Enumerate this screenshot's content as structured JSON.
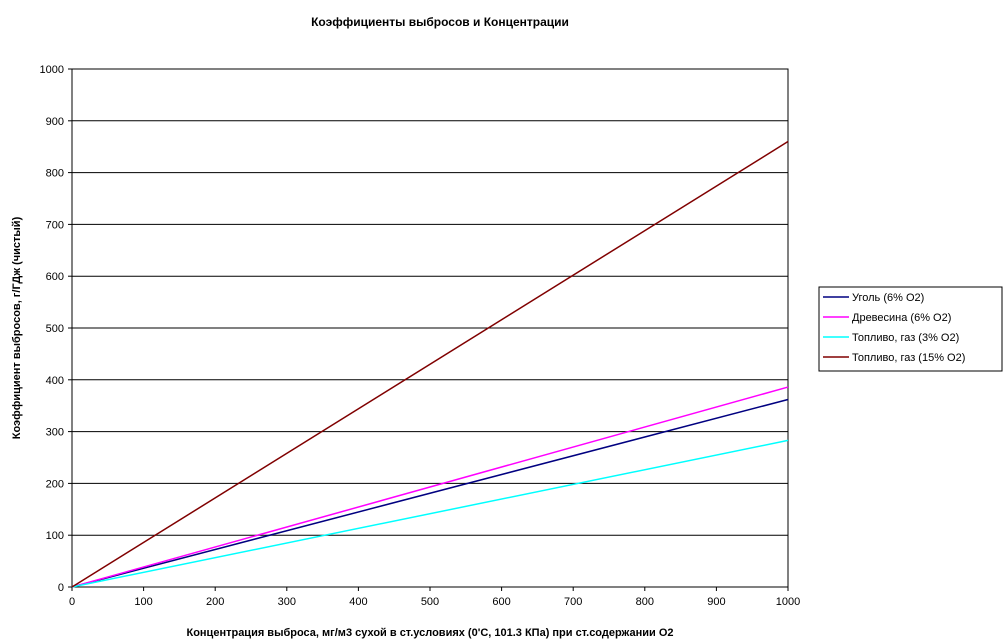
{
  "chart_data": {
    "type": "line",
    "title": "Коэффициенты выбросов и Концентрации",
    "xlabel": "Концентрация выброса, мг/м3 сухой в ст.условиях (0'C, 101.3 КПа) при ст.содержании O2",
    "ylabel": "Коэффициент выбросов, г/ГДж (чистый)",
    "xlim": [
      0,
      1000
    ],
    "ylim": [
      0,
      1000
    ],
    "x_ticks": [
      "0",
      "100",
      "200",
      "300",
      "400",
      "500",
      "600",
      "700",
      "800",
      "900",
      "1000"
    ],
    "y_ticks": [
      "0",
      "100",
      "200",
      "300",
      "400",
      "500",
      "600",
      "700",
      "800",
      "900",
      "1000"
    ],
    "grid": "horizontal",
    "legend_position": "right",
    "series": [
      {
        "name": "Уголь (6% O2)",
        "color": "#000080",
        "x": [
          0,
          1000
        ],
        "y": [
          0,
          362
        ]
      },
      {
        "name": "Древесина (6% O2)",
        "color": "#ff00ff",
        "x": [
          0,
          1000
        ],
        "y": [
          0,
          386
        ]
      },
      {
        "name": "Топливо, газ (3% O2)",
        "color": "#00ffff",
        "x": [
          0,
          1000
        ],
        "y": [
          0,
          283
        ]
      },
      {
        "name": "Топливо, газ (15% O2)",
        "color": "#800000",
        "x": [
          0,
          1000
        ],
        "y": [
          0,
          860
        ]
      }
    ]
  }
}
